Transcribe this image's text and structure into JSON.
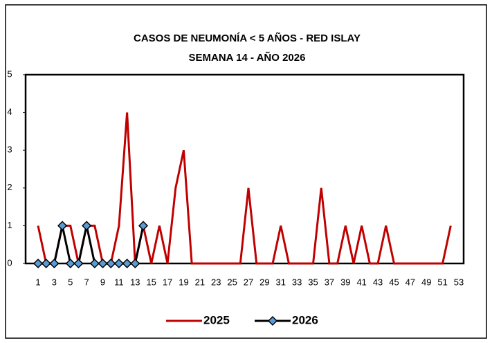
{
  "chart_data": {
    "type": "line",
    "title": [
      "CASOS DE NEUMONÍA < 5 AÑOS - RED ISLAY",
      "SEMANA  14 -  AÑO 2026"
    ],
    "categories": [
      "1",
      null,
      "3",
      null,
      "5",
      null,
      "7",
      null,
      "9",
      null,
      "11",
      null,
      "13",
      null,
      "15",
      null,
      "17",
      null,
      "19",
      null,
      "21",
      null,
      "23",
      null,
      "25",
      null,
      "27",
      null,
      "29",
      null,
      "31",
      null,
      "33",
      null,
      "35",
      null,
      "37",
      null,
      "39",
      null,
      "41",
      null,
      "43",
      null,
      "45",
      null,
      "47",
      null,
      "49",
      null,
      "51",
      null,
      "53"
    ],
    "series": [
      {
        "name": "2025",
        "color": "#c00000",
        "marker": false,
        "values": [
          1,
          0,
          0,
          1,
          1,
          0,
          1,
          1,
          0,
          0,
          1,
          4,
          0,
          1,
          0,
          1,
          0,
          2,
          3,
          0,
          0,
          0,
          0,
          0,
          0,
          0,
          2,
          0,
          0,
          0,
          1,
          0,
          0,
          0,
          0,
          2,
          0,
          0,
          1,
          0,
          1,
          0,
          0,
          1,
          0,
          0,
          0,
          0,
          0,
          0,
          0,
          1,
          null
        ]
      },
      {
        "name": "2026",
        "color": "#000000",
        "marker": true,
        "values": [
          0,
          0,
          0,
          1,
          0,
          0,
          1,
          0,
          0,
          0,
          0,
          0,
          0,
          1,
          null,
          null,
          null,
          null,
          null,
          null,
          null,
          null,
          null,
          null,
          null,
          null,
          null,
          null,
          null,
          null,
          null,
          null,
          null,
          null,
          null,
          null,
          null,
          null,
          null,
          null,
          null,
          null,
          null,
          null,
          null,
          null,
          null,
          null,
          null,
          null,
          null,
          null,
          null
        ]
      }
    ],
    "ylim": [
      0,
      5
    ],
    "yticks": [
      0,
      1,
      2,
      3,
      4,
      5
    ],
    "grid": false,
    "legend": "bottom"
  }
}
